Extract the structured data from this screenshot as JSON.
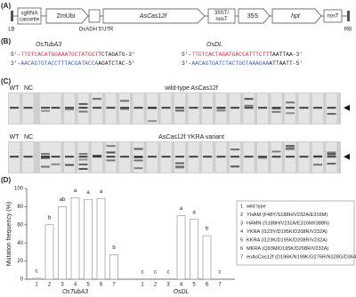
{
  "panel_a": {
    "label": "(A)",
    "lb": "LB",
    "rb": "RB",
    "sgrna_1": "sgRNA",
    "sgrna_2": "cassette",
    "promoter": "ZmUbi",
    "utr": "OsADH 5'UTR",
    "gene": "AsCas12f",
    "term_1": "35ST/",
    "term_2": "nosT",
    "promoter2": "35S",
    "marker": "hpt",
    "term3": "nosT"
  },
  "panel_b": {
    "label": "(B)",
    "targets": [
      {
        "name": "OsTubA3",
        "top": {
          "prefix": "5'-",
          "colored": "TTGTCACATGGAAATGCTATGGT",
          "rest": "TCTAGATG-3'",
          "color": "#d8304a"
        },
        "bottom": {
          "prefix": "3'-",
          "colored": "AACAGTGTACCTTTACGATACCA",
          "rest": "AGATCTAC-5'",
          "color": "#3d5fc4"
        }
      },
      {
        "name": "OsDL",
        "top": {
          "prefix": "5'-",
          "colored": "TTGTCACTAGATGACCATTTCTT",
          "rest": "TAATTAA-3'",
          "color": "#d8304a"
        },
        "bottom": {
          "prefix": "3'-",
          "colored": "AACAGTGATCTACTGGTAAAGAA",
          "rest": "ATTAATT-5'",
          "color": "#3d5fc4"
        }
      }
    ]
  },
  "panel_c": {
    "label": "(C)",
    "gels": [
      {
        "wt": "WT",
        "nc": "NC",
        "title": "wild-type AsCas12f"
      },
      {
        "wt": "WT",
        "nc": "NC",
        "title": "AsCas12f YKRA variant"
      }
    ]
  },
  "panel_d": {
    "label": "(D)",
    "legend": [
      {
        "number": "1",
        "text": "wild type"
      },
      {
        "number": "2",
        "text": "YHAM (F48Y/S188H/V232A/E316M)"
      },
      {
        "number": "3",
        "text": "HAMN (S188H/V232A/E316M/I388N)"
      },
      {
        "number": "4",
        "text": "YKRA (I123Y/D195K/D208R/V232A)"
      },
      {
        "number": "5",
        "text": "KKRA (I123K/D195K/D208R/V232A)"
      },
      {
        "number": "6",
        "text": "MKRA (Q93M/D195K/D208R/V232A)"
      },
      {
        "number": "7",
        "text": "enAsCas12f (D196K/N199K/G276R/N328G/D364R)"
      }
    ]
  },
  "chart_data": {
    "type": "bar",
    "y_label": "Mutation frequency (%)",
    "ylim": [
      0,
      100
    ],
    "yticks": [
      0,
      20,
      40,
      60,
      80,
      100
    ],
    "color": "#ffffff",
    "groups": [
      {
        "name": "OsTubA3",
        "categories": [
          "1",
          "2",
          "3",
          "4",
          "5",
          "6",
          "7"
        ],
        "values": [
          1,
          60,
          80,
          90,
          88,
          89,
          27
        ],
        "letters": [
          "c",
          "b",
          "ab",
          "a",
          "a",
          "a",
          "b"
        ]
      },
      {
        "name": "OsDL",
        "categories": [
          "1",
          "2",
          "3",
          "4",
          "5",
          "6",
          "7"
        ],
        "values": [
          0,
          0,
          0,
          70,
          66,
          48,
          0
        ],
        "letters": [
          "c",
          "c",
          "c",
          "a",
          "a",
          "b",
          "c"
        ]
      }
    ]
  }
}
